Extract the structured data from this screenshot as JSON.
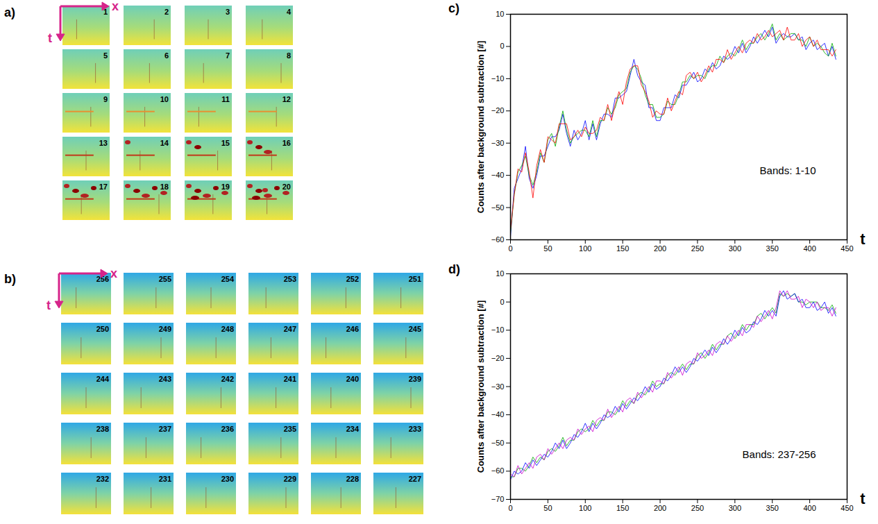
{
  "image_panels": [
    {
      "label": "a)",
      "x_label": "x",
      "t_label": "t",
      "bands": [
        1,
        2,
        3,
        4,
        5,
        6,
        7,
        8,
        9,
        10,
        11,
        12,
        13,
        14,
        15,
        16,
        17,
        18,
        19,
        20
      ]
    },
    {
      "label": "b)",
      "x_label": "x",
      "t_label": "t",
      "bands": [
        256,
        255,
        254,
        253,
        252,
        251,
        250,
        249,
        248,
        247,
        246,
        245,
        244,
        243,
        242,
        241,
        240,
        239,
        238,
        237,
        236,
        235,
        234,
        233,
        232,
        231,
        230,
        229,
        228,
        227
      ]
    }
  ],
  "chart_data": [
    {
      "type": "line",
      "label": "c)",
      "ylabel": "Counts after background subtraction [#]",
      "xlabel": "t",
      "annotation": "Bands: 1-10",
      "xlim": [
        0,
        450
      ],
      "xticks": [
        0,
        50,
        100,
        150,
        200,
        250,
        300,
        350,
        400,
        450
      ],
      "ylim": [
        -60,
        10
      ],
      "yticks": [
        -60,
        -50,
        -40,
        -30,
        -20,
        -10,
        0,
        10
      ],
      "x": [
        0,
        5,
        10,
        15,
        20,
        25,
        30,
        35,
        40,
        45,
        50,
        55,
        60,
        65,
        70,
        75,
        80,
        85,
        90,
        95,
        100,
        105,
        110,
        115,
        120,
        125,
        130,
        135,
        140,
        145,
        150,
        155,
        160,
        165,
        170,
        175,
        180,
        185,
        190,
        195,
        200,
        205,
        210,
        215,
        220,
        225,
        230,
        235,
        240,
        245,
        250,
        255,
        260,
        265,
        270,
        275,
        280,
        285,
        290,
        295,
        300,
        305,
        310,
        315,
        320,
        325,
        330,
        335,
        340,
        345,
        350,
        355,
        360,
        365,
        370,
        375,
        380,
        385,
        390,
        395,
        400,
        405,
        410,
        415,
        420,
        425,
        430,
        435
      ],
      "series": [
        {
          "color": "#0000ff",
          "values": [
            -59,
            -44,
            -41,
            -38,
            -31,
            -41,
            -44,
            -40,
            -34,
            -34,
            -31,
            -28,
            -28,
            -26,
            -21,
            -27,
            -31,
            -26,
            -29,
            -27,
            -23,
            -29,
            -24,
            -29,
            -24,
            -21,
            -21,
            -22,
            -16,
            -16,
            -15,
            -14,
            -9,
            -4,
            -9,
            -11,
            -12,
            -19,
            -19,
            -23,
            -23,
            -19,
            -19,
            -19,
            -15,
            -16,
            -12,
            -12,
            -10,
            -8,
            -11,
            -10,
            -7,
            -8,
            -5,
            -7,
            -6,
            -3,
            -4,
            -3,
            0,
            -2,
            1,
            -2,
            0,
            3,
            1,
            3,
            5,
            3,
            6,
            1,
            3,
            4,
            3,
            3,
            4,
            2,
            3,
            -1,
            1,
            2,
            -1,
            0,
            1,
            -3,
            0,
            -4
          ]
        },
        {
          "color": "#00aa00",
          "values": [
            -58,
            -46,
            -39,
            -37,
            -34,
            -40,
            -43,
            -39,
            -33,
            -36,
            -29,
            -27,
            -31,
            -25,
            -20,
            -26,
            -30,
            -28,
            -27,
            -26,
            -26,
            -28,
            -23,
            -28,
            -23,
            -23,
            -19,
            -21,
            -19,
            -15,
            -14,
            -13,
            -8,
            -6,
            -7,
            -10,
            -15,
            -18,
            -18,
            -22,
            -22,
            -21,
            -17,
            -18,
            -18,
            -15,
            -11,
            -11,
            -9,
            -10,
            -9,
            -9,
            -10,
            -7,
            -6,
            -6,
            -3,
            -5,
            -3,
            -2,
            -3,
            -1,
            2,
            -1,
            1,
            1,
            3,
            4,
            2,
            4,
            7,
            2,
            4,
            2,
            3,
            4,
            4,
            2,
            2,
            0,
            3,
            0,
            1,
            0,
            -2,
            -3,
            1,
            -3
          ]
        },
        {
          "color": "#ff0000",
          "values": [
            -57,
            -46,
            -38,
            -39,
            -33,
            -39,
            -47,
            -37,
            -32,
            -36,
            -28,
            -29,
            -30,
            -24,
            -24,
            -24,
            -29,
            -28,
            -26,
            -28,
            -25,
            -27,
            -27,
            -26,
            -22,
            -23,
            -18,
            -23,
            -18,
            -14,
            -18,
            -11,
            -7,
            -6,
            -6,
            -12,
            -14,
            -17,
            -22,
            -20,
            -21,
            -21,
            -16,
            -20,
            -17,
            -14,
            -15,
            -9,
            -8,
            -10,
            -8,
            -11,
            -9,
            -6,
            -8,
            -4,
            -4,
            -5,
            -1,
            -4,
            -2,
            0,
            -2,
            1,
            2,
            1,
            4,
            2,
            3,
            5,
            3,
            4,
            5,
            2,
            6,
            2,
            2,
            4,
            0,
            2,
            3,
            0,
            2,
            -1,
            -1,
            -1,
            -3,
            -1
          ]
        }
      ]
    },
    {
      "type": "line",
      "label": "d)",
      "ylabel": "Counts after background subtraction [#]",
      "xlabel": "t",
      "annotation": "Bands: 237-256",
      "xlim": [
        0,
        450
      ],
      "xticks": [
        0,
        50,
        100,
        150,
        200,
        250,
        300,
        350,
        400,
        450
      ],
      "ylim": [
        -70,
        10
      ],
      "yticks": [
        -70,
        -60,
        -50,
        -40,
        -30,
        -20,
        -10,
        0,
        10
      ],
      "x": [
        0,
        5,
        10,
        15,
        20,
        25,
        30,
        35,
        40,
        45,
        50,
        55,
        60,
        65,
        70,
        75,
        80,
        85,
        90,
        95,
        100,
        105,
        110,
        115,
        120,
        125,
        130,
        135,
        140,
        145,
        150,
        155,
        160,
        165,
        170,
        175,
        180,
        185,
        190,
        195,
        200,
        205,
        210,
        215,
        220,
        225,
        230,
        235,
        240,
        245,
        250,
        255,
        260,
        265,
        270,
        275,
        280,
        285,
        290,
        295,
        300,
        305,
        310,
        315,
        320,
        325,
        330,
        335,
        340,
        345,
        350,
        355,
        360,
        365,
        370,
        375,
        380,
        385,
        390,
        395,
        400,
        405,
        410,
        415,
        420,
        425,
        430,
        435
      ],
      "series": [
        {
          "color": "#00aa00",
          "values": [
            -62,
            -62,
            -59,
            -59,
            -60,
            -58,
            -55,
            -57,
            -55,
            -56,
            -53,
            -52,
            -53,
            -51,
            -48,
            -51,
            -49,
            -49,
            -46,
            -45,
            -46,
            -45,
            -42,
            -44,
            -42,
            -42,
            -39,
            -39,
            -40,
            -38,
            -35,
            -37,
            -35,
            -36,
            -33,
            -32,
            -33,
            -31,
            -28,
            -30,
            -29,
            -29,
            -26,
            -25,
            -26,
            -24,
            -22,
            -24,
            -22,
            -22,
            -19,
            -18,
            -20,
            -18,
            -15,
            -17,
            -15,
            -15,
            -12,
            -11,
            -13,
            -11,
            -8,
            -10,
            -8,
            -8,
            -5,
            -4,
            -6,
            -4,
            -2,
            -4,
            3,
            2,
            3,
            2,
            3,
            0,
            0,
            -1,
            0,
            0,
            0,
            -2,
            -2,
            -3,
            -1,
            -4
          ]
        },
        {
          "color": "#0000ff",
          "values": [
            -63,
            -60,
            -61,
            -60,
            -57,
            -59,
            -56,
            -58,
            -56,
            -54,
            -55,
            -53,
            -50,
            -52,
            -49,
            -52,
            -50,
            -47,
            -48,
            -46,
            -43,
            -46,
            -43,
            -45,
            -43,
            -40,
            -41,
            -40,
            -37,
            -39,
            -36,
            -38,
            -36,
            -34,
            -35,
            -33,
            -30,
            -32,
            -29,
            -31,
            -30,
            -27,
            -28,
            -26,
            -23,
            -25,
            -23,
            -25,
            -23,
            -20,
            -21,
            -19,
            -17,
            -19,
            -16,
            -18,
            -16,
            -13,
            -15,
            -13,
            -10,
            -12,
            -9,
            -11,
            -10,
            -7,
            -8,
            -6,
            -3,
            -5,
            -3,
            -5,
            2,
            4,
            1,
            2,
            3,
            0,
            1,
            -2,
            -2,
            0,
            -3,
            -2,
            0,
            -4,
            -2,
            -5
          ]
        },
        {
          "color": "#cc00cc",
          "values": [
            -61,
            -62,
            -58,
            -61,
            -59,
            -57,
            -59,
            -55,
            -54,
            -56,
            -52,
            -54,
            -52,
            -50,
            -52,
            -49,
            -48,
            -49,
            -45,
            -47,
            -45,
            -44,
            -46,
            -42,
            -41,
            -42,
            -38,
            -41,
            -39,
            -37,
            -39,
            -35,
            -34,
            -36,
            -32,
            -34,
            -32,
            -30,
            -32,
            -28,
            -28,
            -29,
            -25,
            -27,
            -25,
            -23,
            -26,
            -22,
            -21,
            -22,
            -18,
            -20,
            -19,
            -17,
            -19,
            -15,
            -14,
            -15,
            -12,
            -14,
            -12,
            -10,
            -12,
            -8,
            -8,
            -9,
            -5,
            -7,
            -5,
            -3,
            -6,
            -2,
            4,
            2,
            4,
            1,
            1,
            2,
            -2,
            1,
            0,
            -2,
            0,
            -3,
            -2,
            -2,
            -5,
            -2
          ]
        }
      ]
    }
  ]
}
